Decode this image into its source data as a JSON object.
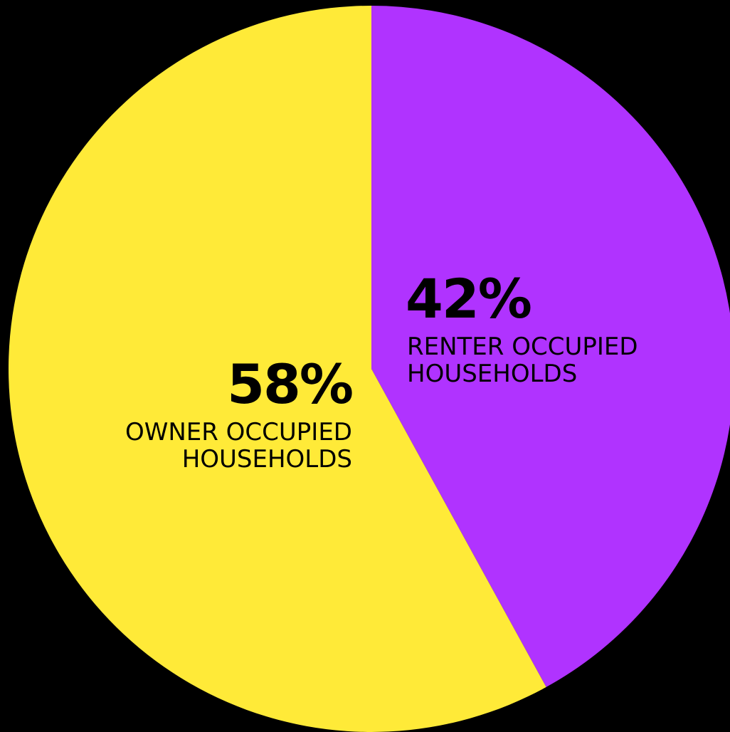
{
  "chart_data": {
    "type": "pie",
    "categories": [
      "RENTER OCCUPIED HOUSEHOLDS",
      "OWNER OCCUPIED HOUSEHOLDS"
    ],
    "values": [
      42,
      58
    ],
    "value_labels": [
      "42%",
      "58%"
    ],
    "colors": [
      "#b033ff",
      "#ffea38"
    ]
  }
}
